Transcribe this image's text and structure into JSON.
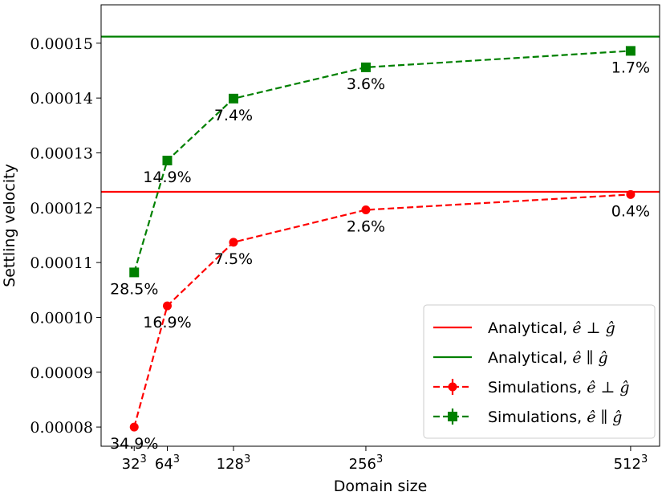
{
  "chart_data": {
    "type": "line",
    "title": "",
    "xlabel": "Domain size",
    "ylabel": "Settling velocity",
    "x": [
      32,
      64,
      128,
      256,
      512
    ],
    "x_tick_base": [
      "32",
      "64",
      "128",
      "256",
      "512"
    ],
    "x_tick_exponent": "3",
    "xlim": [
      0,
      540
    ],
    "ylim": [
      7.65e-05,
      0.000157
    ],
    "y_ticks": [
      8e-05,
      9e-05,
      0.0001,
      0.00011,
      0.00012,
      0.00013,
      0.00014,
      0.00015
    ],
    "y_tick_labels": [
      "0.00008",
      "0.00009",
      "0.00010",
      "0.00011",
      "0.00012",
      "0.00013",
      "0.00014",
      "0.00015"
    ],
    "reference_lines": [
      {
        "name": "Analytical, ê ⊥ ĝ",
        "value": 0.0001229,
        "color": "#ff0000"
      },
      {
        "name": "Analytical, ê ∥ ĝ",
        "value": 0.0001512,
        "color": "#008000"
      }
    ],
    "series": [
      {
        "name": "Simulations, ê ⊥ ĝ",
        "color": "#ff0000",
        "marker": "circle",
        "values": [
          8e-05,
          0.0001021,
          0.0001137,
          0.0001196,
          0.0001224
        ],
        "labels": [
          "34.9%",
          "16.9%",
          "7.5%",
          "2.6%",
          "0.4%"
        ]
      },
      {
        "name": "Simulations, ê ∥ ĝ",
        "color": "#008000",
        "marker": "square",
        "values": [
          0.0001082,
          0.0001286,
          0.0001399,
          0.0001456,
          0.0001486
        ],
        "labels": [
          "28.5%",
          "14.9%",
          "7.4%",
          "3.6%",
          "1.7%"
        ]
      }
    ],
    "legend_position": "lower-right",
    "legend": [
      {
        "prefix": "Analytical, ",
        "e": "ê",
        "rel": "⊥",
        "g": "ĝ"
      },
      {
        "prefix": "Analytical, ",
        "e": "ê",
        "rel": "∥",
        "g": "ĝ"
      },
      {
        "prefix": "Simulations, ",
        "e": "ê",
        "rel": "⊥",
        "g": "ĝ"
      },
      {
        "prefix": "Simulations, ",
        "e": "ê",
        "rel": "∥",
        "g": "ĝ"
      }
    ]
  }
}
